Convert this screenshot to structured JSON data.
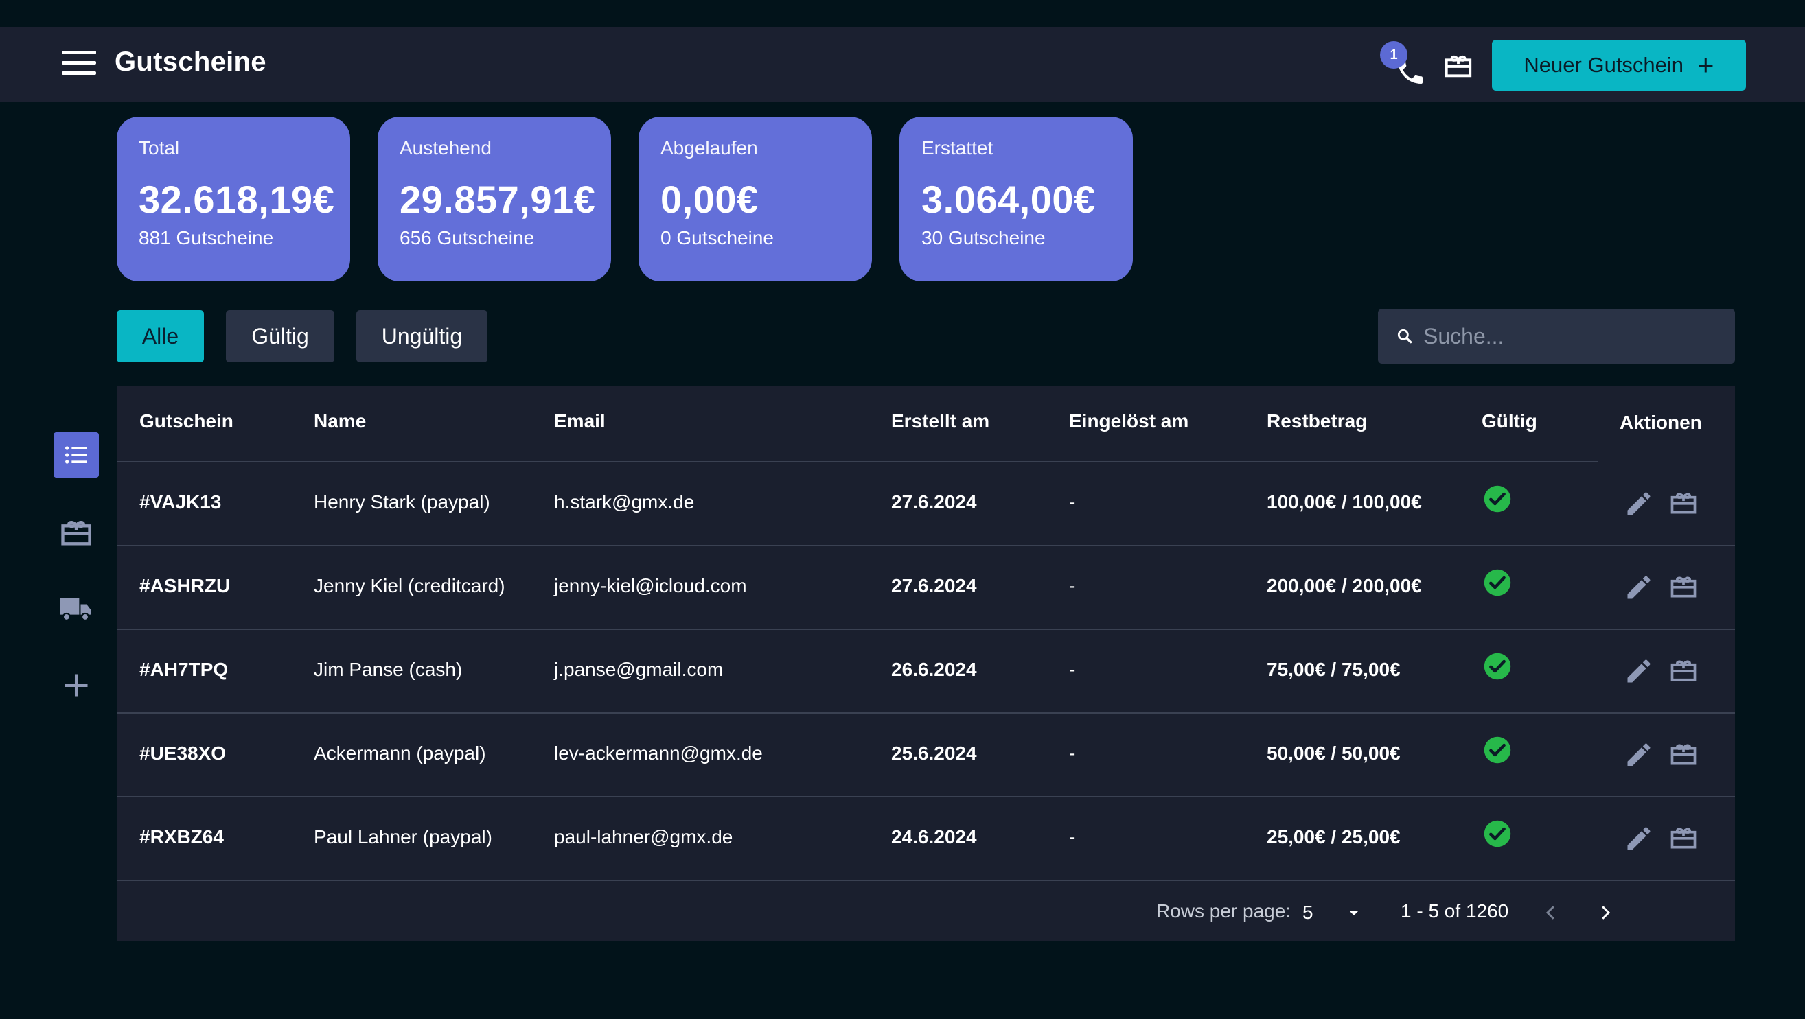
{
  "header": {
    "title": "Gutscheine",
    "notification_count": "1",
    "new_button_label": "Neuer Gutschein",
    "new_button_icon": "+"
  },
  "stats": [
    {
      "label": "Total",
      "amount": "32.618,19€",
      "count": "881 Gutscheine"
    },
    {
      "label": "Austehend",
      "amount": "29.857,91€",
      "count": "656 Gutscheine"
    },
    {
      "label": "Abgelaufen",
      "amount": "0,00€",
      "count": "0 Gutscheine"
    },
    {
      "label": "Erstattet",
      "amount": "3.064,00€",
      "count": "30 Gutscheine"
    }
  ],
  "filters": {
    "all": "Alle",
    "valid": "Gültig",
    "invalid": "Ungültig",
    "active": "Alle"
  },
  "search": {
    "placeholder": "Suche..."
  },
  "sidebar": {
    "items": [
      "list-icon",
      "gift-icon",
      "truck-icon",
      "plus-icon"
    ],
    "active": "list-icon"
  },
  "table": {
    "columns": {
      "code": "Gutschein",
      "name": "Name",
      "email": "Email",
      "created": "Erstellt am",
      "redeemed": "Eingelöst am",
      "balance": "Restbetrag",
      "valid": "Gültig",
      "actions": "Aktionen"
    },
    "rows": [
      {
        "code": "#VAJK13",
        "name": "Henry Stark (paypal)",
        "email": "h.stark@gmx.de",
        "created": "27.6.2024",
        "redeemed": "-",
        "balance": "100,00€ / 100,00€",
        "valid": true
      },
      {
        "code": "#ASHRZU",
        "name": "Jenny Kiel (creditcard)",
        "email": "jenny-kiel@icloud.com",
        "created": "27.6.2024",
        "redeemed": "-",
        "balance": "200,00€ / 200,00€",
        "valid": true
      },
      {
        "code": "#AH7TPQ",
        "name": "Jim Panse (cash)",
        "email": "j.panse@gmail.com",
        "created": "26.6.2024",
        "redeemed": "-",
        "balance": "75,00€ / 75,00€",
        "valid": true
      },
      {
        "code": "#UE38XO",
        "name": "Ackermann (paypal)",
        "email": "lev-ackermann@gmx.de",
        "created": "25.6.2024",
        "redeemed": "-",
        "balance": "50,00€ / 50,00€",
        "valid": true
      },
      {
        "code": "#RXBZ64",
        "name": "Paul Lahner (paypal)",
        "email": "paul-lahner@gmx.de",
        "created": "24.6.2024",
        "redeemed": "-",
        "balance": "25,00€ / 25,00€",
        "valid": true
      }
    ]
  },
  "pagination": {
    "rows_per_page_label": "Rows per page:",
    "rows_per_page_value": "5",
    "range_text": "1 - 5 of 1260"
  },
  "colors": {
    "accent": "#09b6c4",
    "card": "#636fd9",
    "valid_check": "#27b84a",
    "background": "#02131a",
    "panel": "#1a1f2e"
  }
}
